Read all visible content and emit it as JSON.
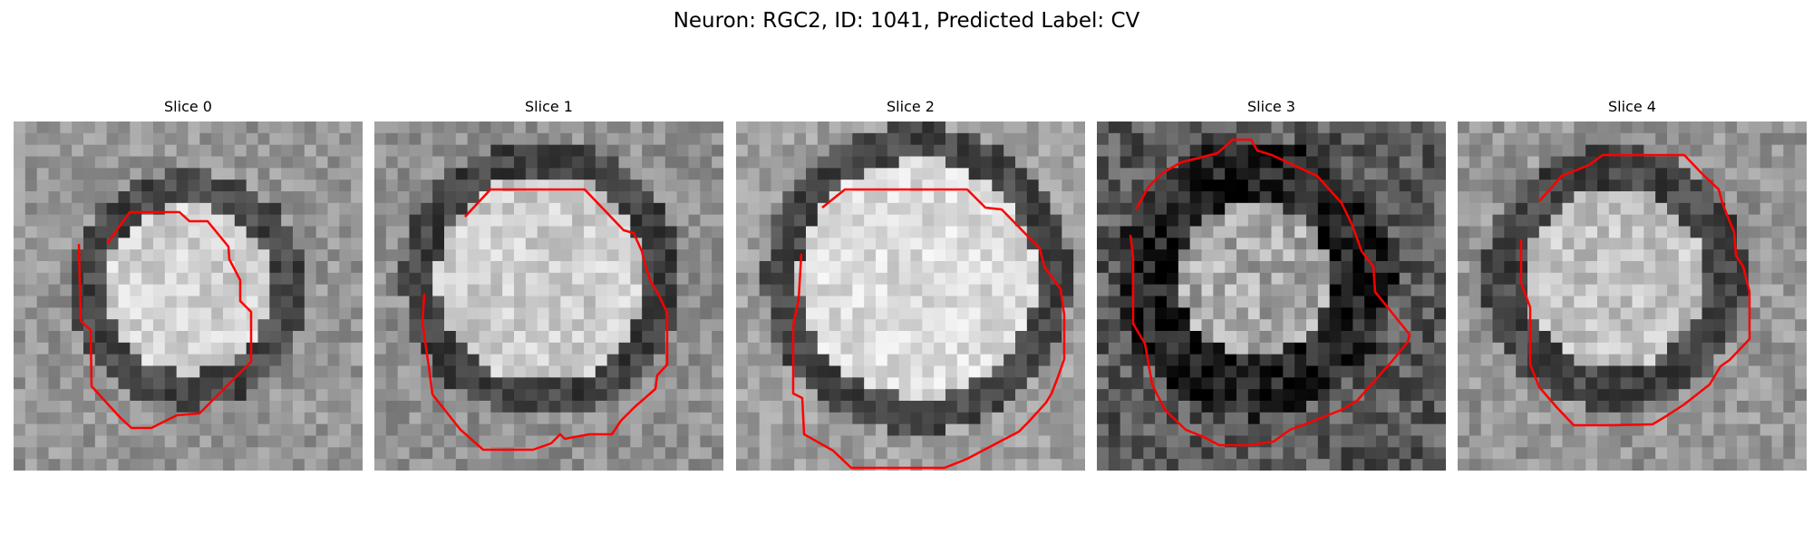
{
  "figure": {
    "title": "Neuron: RGC2, ID: 1041, Predicted Label: CV"
  },
  "panels": [
    {
      "title": "Slice 0",
      "outline_color": "#ff0000"
    },
    {
      "title": "Slice 1",
      "outline_color": "#ff0000"
    },
    {
      "title": "Slice 2",
      "outline_color": "#ff0000"
    },
    {
      "title": "Slice 3",
      "outline_color": "#ff0000"
    },
    {
      "title": "Slice 4",
      "outline_color": "#ff0000"
    }
  ],
  "colormap": "gray"
}
